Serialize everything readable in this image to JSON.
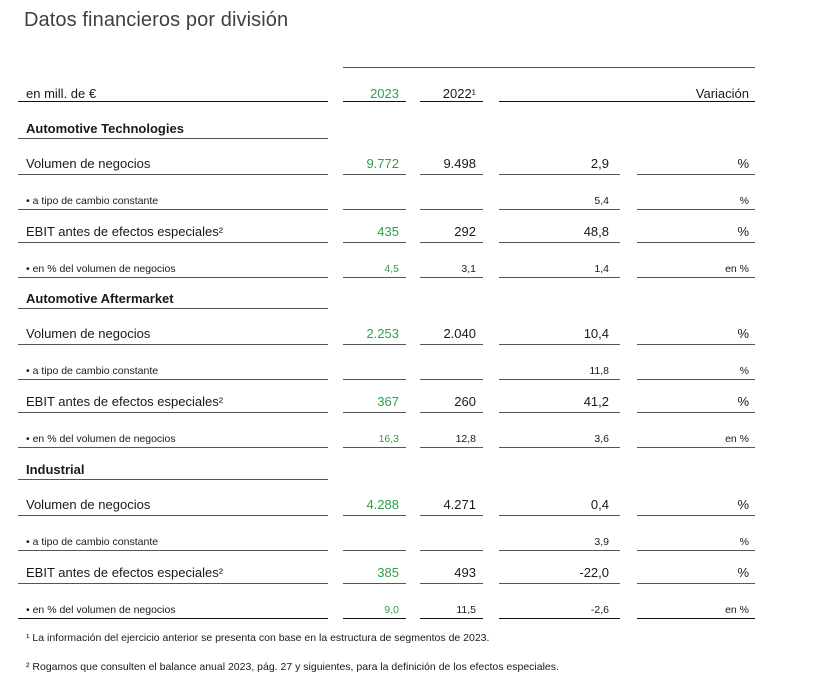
{
  "title": "Datos financieros por división",
  "header": {
    "unit_label": "en mill. de €",
    "col_2023": "2023",
    "col_2022": "2022¹",
    "col_variation": "Variación"
  },
  "sections": [
    {
      "name": "Automotive Technologies",
      "rows": [
        {
          "label": "Volumen de negocios",
          "v2023": "9.772",
          "v2022": "9.498",
          "var": "2,9",
          "unit": "%"
        },
        {
          "label": "• a tipo de cambio constante",
          "v2023": "",
          "v2022": "",
          "var": "5,4",
          "unit": "%"
        },
        {
          "label": "EBIT antes de efectos especiales²",
          "v2023": "435",
          "v2022": "292",
          "var": "48,8",
          "unit": "%"
        },
        {
          "label": "• en % del volumen de negocios",
          "v2023": "4,5",
          "v2022": "3,1",
          "var": "1,4",
          "unit": "en %"
        }
      ]
    },
    {
      "name": "Automotive Aftermarket",
      "rows": [
        {
          "label": "Volumen de negocios",
          "v2023": "2.253",
          "v2022": "2.040",
          "var": "10,4",
          "unit": "%"
        },
        {
          "label": "• a tipo de cambio constante",
          "v2023": "",
          "v2022": "",
          "var": "11,8",
          "unit": "%"
        },
        {
          "label": "EBIT antes de efectos especiales²",
          "v2023": "367",
          "v2022": "260",
          "var": "41,2",
          "unit": "%"
        },
        {
          "label": "• en % del volumen de negocios",
          "v2023": "16,3",
          "v2022": "12,8",
          "var": "3,6",
          "unit": "en %"
        }
      ]
    },
    {
      "name": "Industrial",
      "rows": [
        {
          "label": "Volumen de negocios",
          "v2023": "4.288",
          "v2022": "4.271",
          "var": "0,4",
          "unit": "%"
        },
        {
          "label": "• a tipo de cambio constante",
          "v2023": "",
          "v2022": "",
          "var": "3,9",
          "unit": "%"
        },
        {
          "label": "EBIT antes de efectos especiales²",
          "v2023": "385",
          "v2022": "493",
          "var": "-22,0",
          "unit": "%"
        },
        {
          "label": "• en % del volumen de negocios",
          "v2023": "9,0",
          "v2022": "11,5",
          "var": "-2,6",
          "unit": "en %"
        }
      ]
    }
  ],
  "footnotes": [
    "¹ La información del ejercicio anterior se presenta con base en la estructura de segmentos de 2023.",
    "² Rogamos que consulten el balance anual 2023, pág. 27 y siguientes, para la definición de los efectos especiales."
  ],
  "colors": {
    "accent_green": "#2e9e4a"
  }
}
